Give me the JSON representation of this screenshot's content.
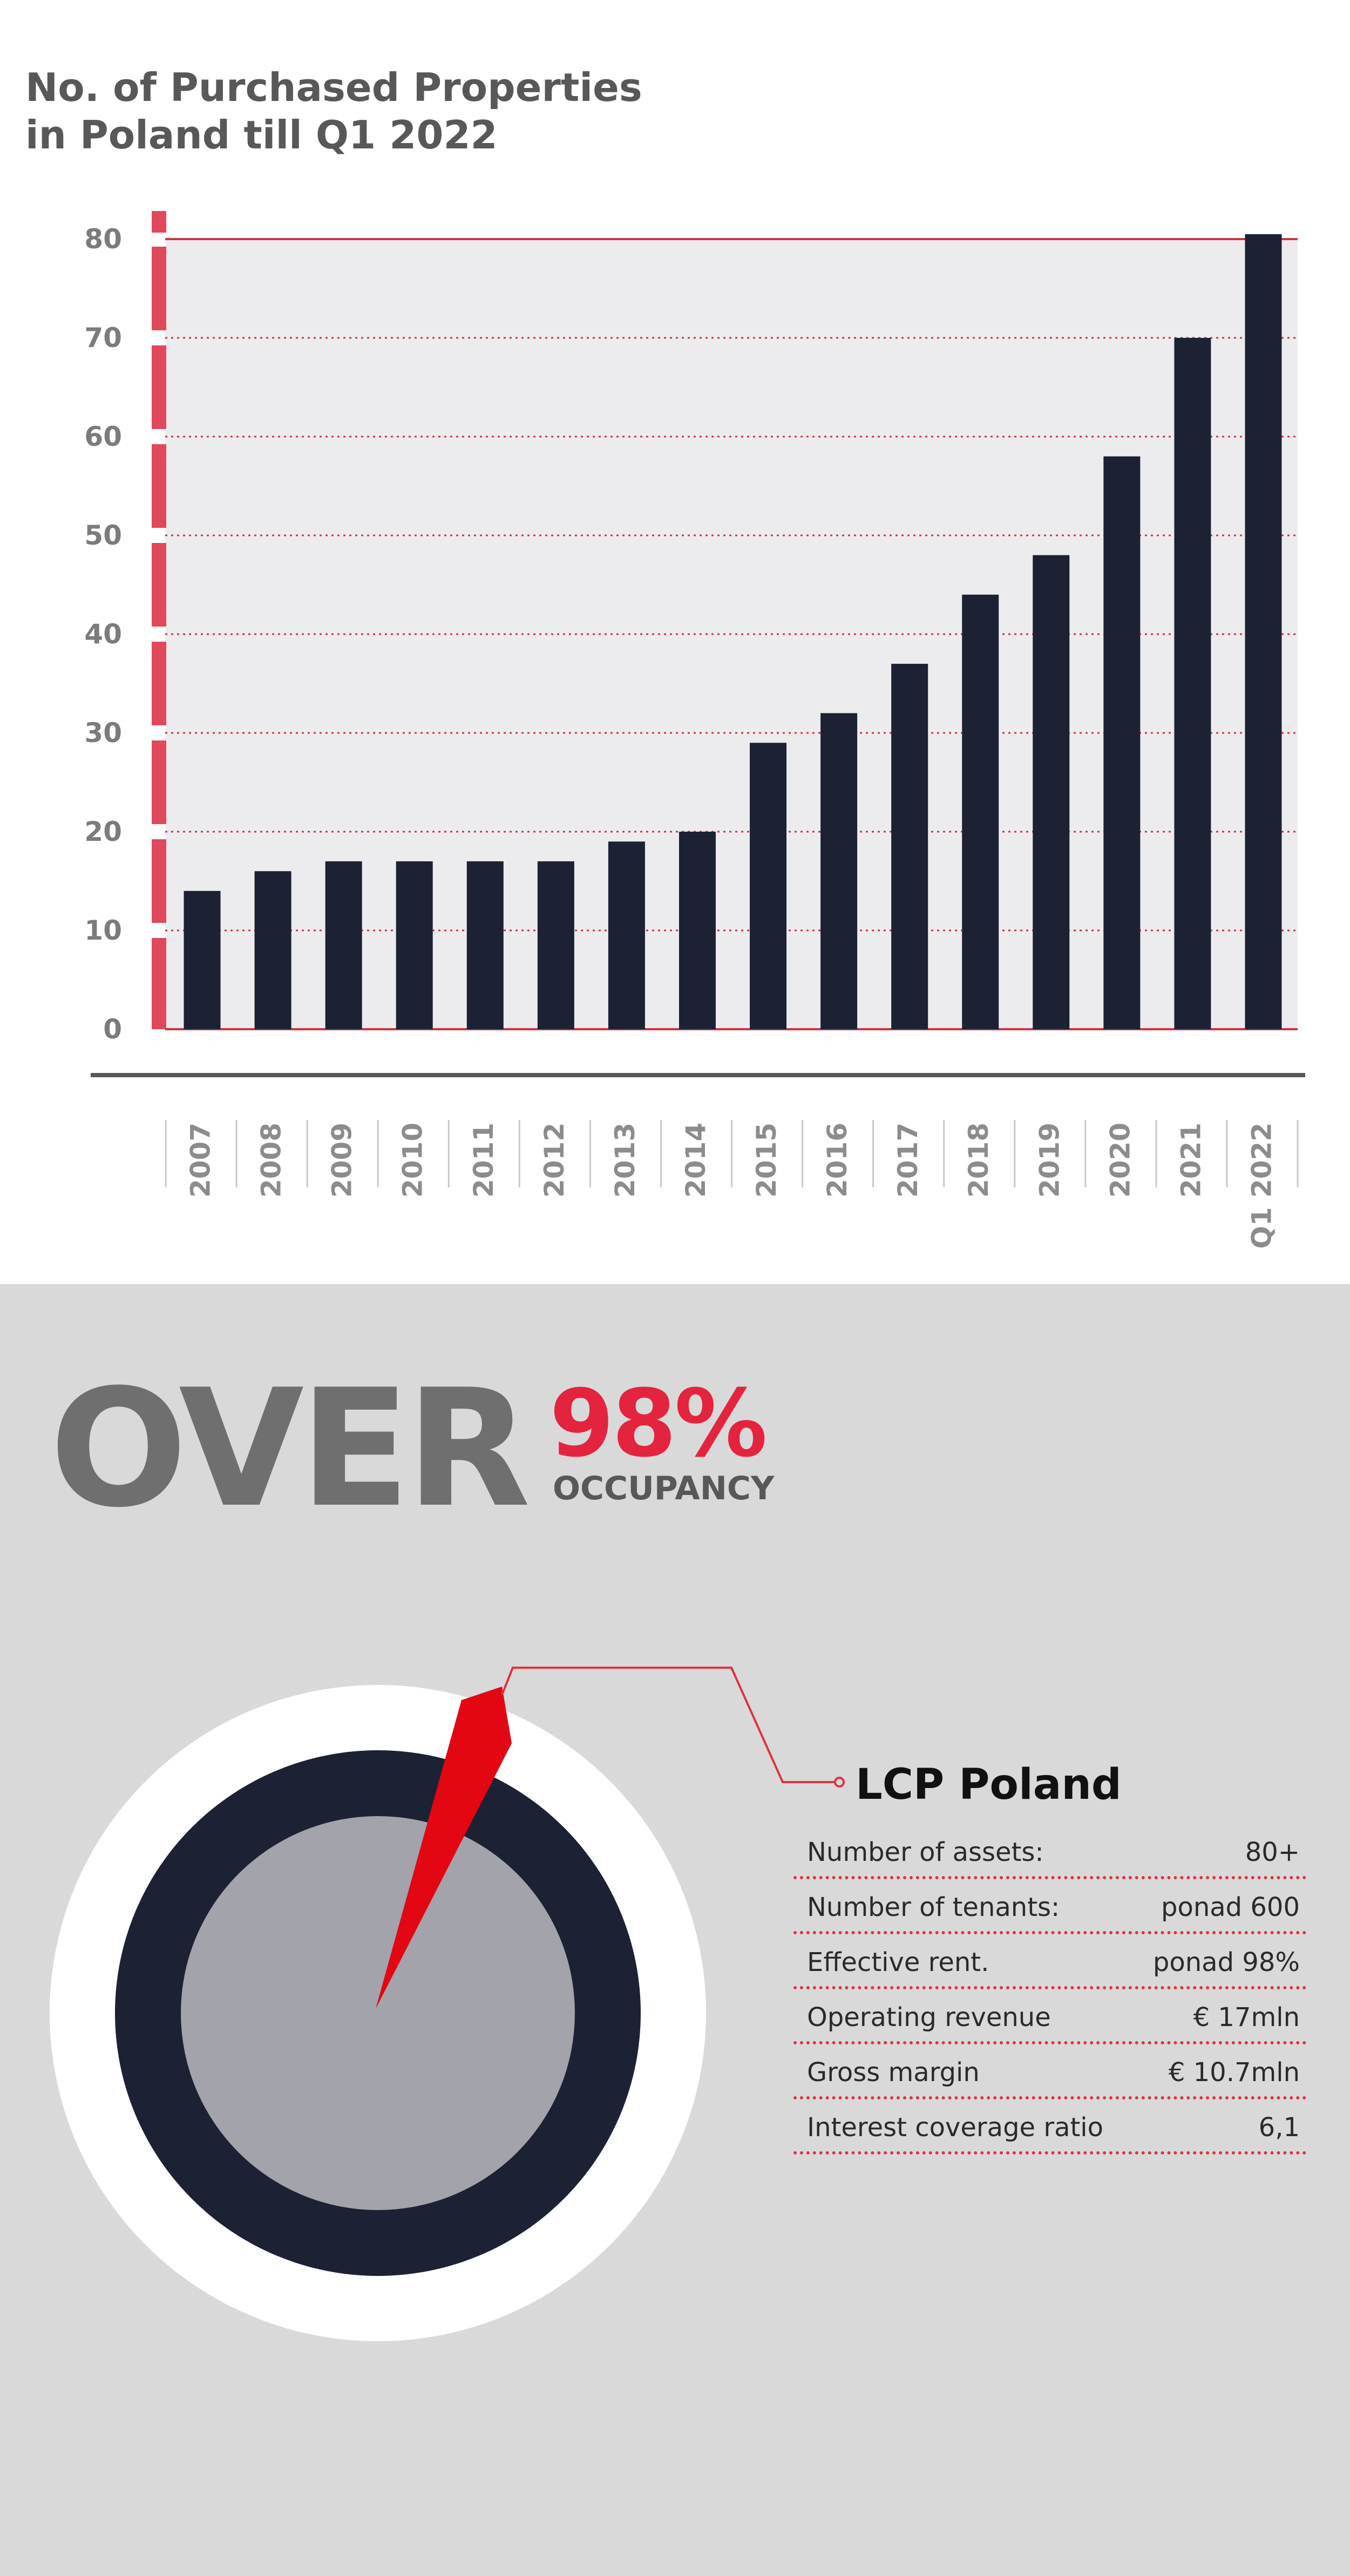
{
  "chart_data": {
    "type": "bar",
    "title": [
      "No. of Purchased Properties",
      "in Poland till Q1 2022"
    ],
    "categories": [
      "2007",
      "2008",
      "2009",
      "2010",
      "2011",
      "2012",
      "2013",
      "2014",
      "2015",
      "2016",
      "2017",
      "2018",
      "2019",
      "2020",
      "2021",
      "Q1 2022"
    ],
    "values": [
      14,
      16,
      17,
      17,
      17,
      17,
      19,
      20,
      29,
      32,
      37,
      44,
      48,
      58,
      70,
      80.5
    ],
    "yticks": [
      0,
      10,
      20,
      30,
      40,
      50,
      60,
      70,
      80
    ],
    "ylim": [
      0,
      80
    ],
    "xlabel": "",
    "ylabel": "",
    "grid": true,
    "colors": {
      "bar": "#1c2133",
      "plot_bg": "#ececee",
      "grid": "#cc3344",
      "accent": "#e0485c",
      "axis": "#58585a"
    }
  },
  "occupancy": {
    "over": "OVER",
    "percent": "98%",
    "label": "OCCUPANCY",
    "share": 0.98,
    "colors": {
      "ring": "#1c2133",
      "inner": "#a2a3ab",
      "outer": "#ffffff",
      "pointer": "#e30613"
    }
  },
  "lcp": {
    "title": "LCP Poland",
    "stats": [
      {
        "label": "Number of assets:",
        "value": "80+"
      },
      {
        "label": "Number of tenants:",
        "value": "ponad 600"
      },
      {
        "label": "Effective rent.",
        "value": "ponad 98%"
      },
      {
        "label": "Operating revenue",
        "value": "€ 17mln"
      },
      {
        "label": "Gross margin",
        "value": "€ 10.7mln"
      },
      {
        "label": "Interest coverage ratio",
        "value": "6,1"
      }
    ]
  }
}
